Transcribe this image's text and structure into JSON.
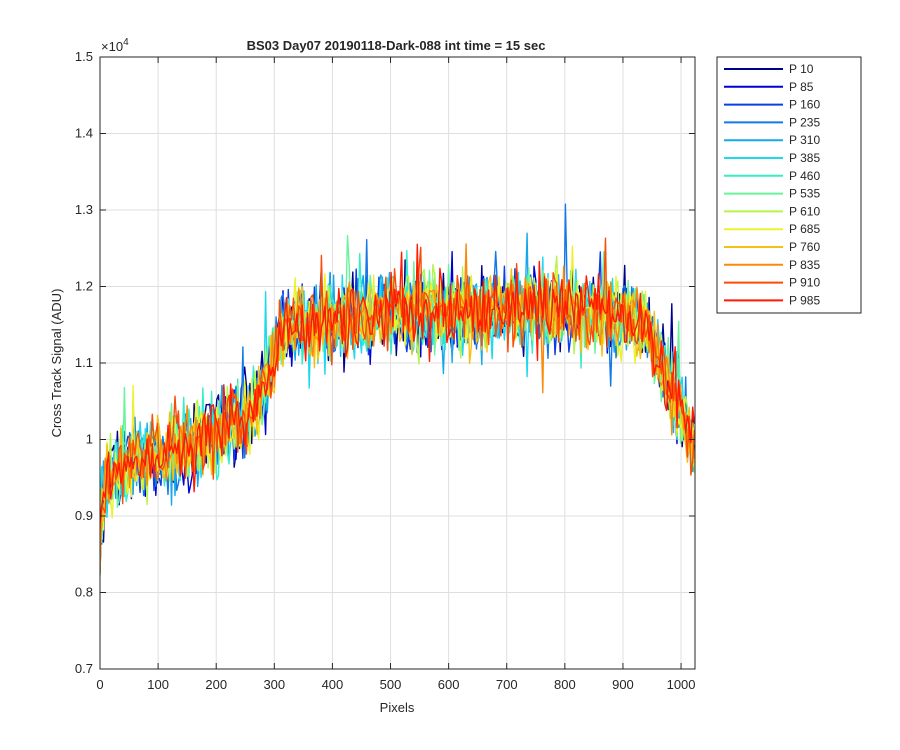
{
  "chart_data": {
    "type": "line",
    "title": "BS03 Day07 20190118-Dark-088 int time = 15 sec",
    "xlabel": "Pixels",
    "ylabel": "Cross Track Signal (ADU)",
    "xlim": [
      0,
      1024
    ],
    "ylim": [
      0.7,
      1.5
    ],
    "y_multiplier": "×10^4",
    "y_exponent": 4,
    "grid": true,
    "legend_position": "outside-top-right",
    "xticks": [
      0,
      100,
      200,
      300,
      400,
      500,
      600,
      700,
      800,
      900,
      1000
    ],
    "yticks": [
      0.7,
      0.8,
      0.9,
      1,
      1.1,
      1.2,
      1.3,
      1.4,
      1.5
    ],
    "ytick_labels": [
      "0.7",
      "0.8",
      "0.9",
      "1",
      "1.1",
      "1.2",
      "1.3",
      "1.4",
      "1.5"
    ],
    "profile_x": [
      0,
      10,
      50,
      100,
      150,
      200,
      250,
      280,
      310,
      350,
      400,
      450,
      500,
      550,
      600,
      650,
      700,
      750,
      800,
      850,
      900,
      940,
      960,
      1000,
      1024
    ],
    "profile_y": [
      0.88,
      0.95,
      0.97,
      0.98,
      0.99,
      1.01,
      1.03,
      1.06,
      1.14,
      1.15,
      1.155,
      1.16,
      1.165,
      1.165,
      1.16,
      1.165,
      1.17,
      1.17,
      1.17,
      1.165,
      1.16,
      1.15,
      1.1,
      1.04,
      0.98
    ],
    "noise_amplitude": 0.045,
    "series": [
      {
        "name": "P 10",
        "color": "#00008f"
      },
      {
        "name": "P 85",
        "color": "#0000d4"
      },
      {
        "name": "P 160",
        "color": "#0b3fdf"
      },
      {
        "name": "P 235",
        "color": "#1479e6"
      },
      {
        "name": "P 310",
        "color": "#17a8ec"
      },
      {
        "name": "P 385",
        "color": "#1ed8ee"
      },
      {
        "name": "P 460",
        "color": "#35edc8"
      },
      {
        "name": "P 535",
        "color": "#69f39a"
      },
      {
        "name": "P 610",
        "color": "#b6f549"
      },
      {
        "name": "P 685",
        "color": "#ecf22c"
      },
      {
        "name": "P 760",
        "color": "#f5c013"
      },
      {
        "name": "P 835",
        "color": "#f98b0a"
      },
      {
        "name": "P 910",
        "color": "#f94c06"
      },
      {
        "name": "P 985",
        "color": "#ff1a00"
      }
    ]
  }
}
